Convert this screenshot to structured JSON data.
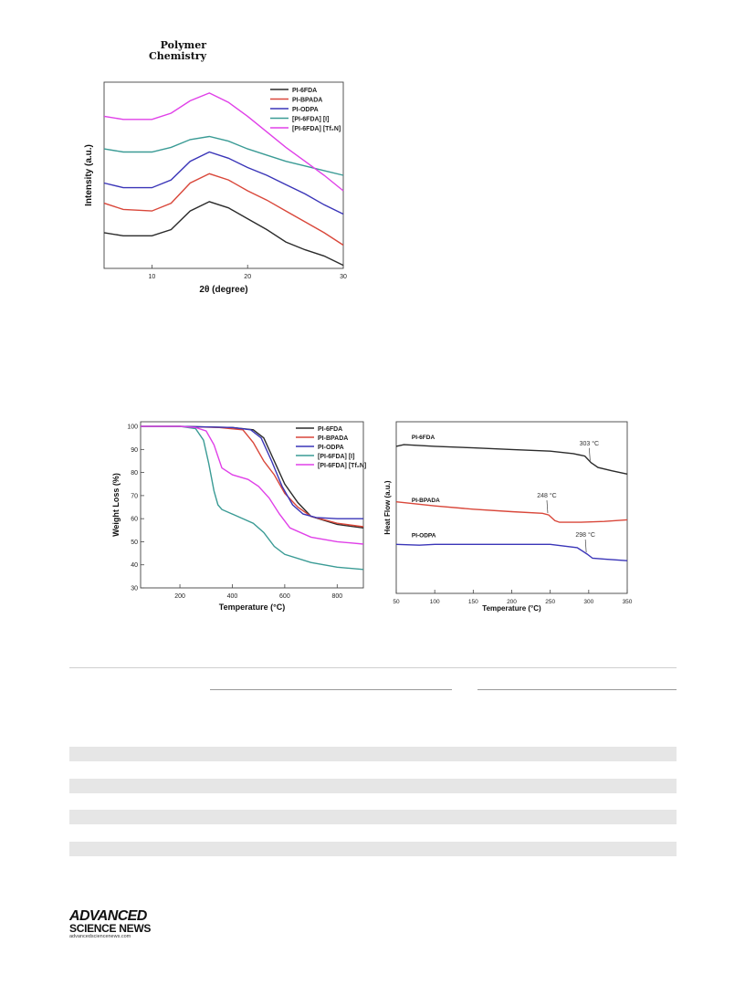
{
  "header": {
    "journal_line1": "Polymer",
    "journal_line2": "Chemistry"
  },
  "colors": {
    "PI-6FDA": "#2b2b2b",
    "PI-BPADA": "#d9473a",
    "PI-ODPA": "#3a35b8",
    "[PI-6FDA] [I]": "#3a9b95",
    "[PI-6FDA] [Tf2N]": "#e040e8"
  },
  "chart_data": [
    {
      "type": "line",
      "xlabel": "2θ (degree)",
      "ylabel": "Intensity (a.u.)",
      "xlim": [
        5,
        30
      ],
      "xticks": [
        10,
        20,
        30
      ],
      "yticks_shown": false,
      "legend_position": "top-right",
      "series": [
        {
          "name": "PI-6FDA",
          "display": "PI-6FDA",
          "x": [
            5,
            7,
            10,
            12,
            14,
            16,
            18,
            20,
            22,
            24,
            26,
            28,
            30
          ],
          "y": [
            1.8,
            1.6,
            1.6,
            2.0,
            3.2,
            3.8,
            3.4,
            2.7,
            2.0,
            1.2,
            0.7,
            0.3,
            -0.3
          ]
        },
        {
          "name": "PI-BPADA",
          "display": "PI-BPADA",
          "x": [
            5,
            7,
            10,
            12,
            14,
            16,
            18,
            20,
            22,
            24,
            26,
            28,
            30
          ],
          "y": [
            3.7,
            3.3,
            3.2,
            3.7,
            5.0,
            5.6,
            5.2,
            4.5,
            3.9,
            3.2,
            2.5,
            1.8,
            1.0
          ]
        },
        {
          "name": "PI-ODPA",
          "display": "PI-ODPA",
          "x": [
            5,
            7,
            10,
            12,
            14,
            16,
            18,
            20,
            22,
            24,
            26,
            28,
            30
          ],
          "y": [
            5.0,
            4.7,
            4.7,
            5.2,
            6.4,
            7.0,
            6.6,
            6.0,
            5.5,
            4.9,
            4.3,
            3.6,
            3.0
          ]
        },
        {
          "name": "[PI-6FDA] [I]",
          "display": "[PI-6FDA] [I]",
          "x": [
            5,
            7,
            10,
            12,
            14,
            16,
            18,
            20,
            22,
            24,
            26,
            28,
            30
          ],
          "y": [
            7.2,
            7.0,
            7.0,
            7.3,
            7.8,
            8.0,
            7.7,
            7.2,
            6.8,
            6.4,
            6.1,
            5.8,
            5.5
          ]
        },
        {
          "name": "[PI-6FDA] [Tf2N]",
          "display": "[PI-6FDA] [Tf₂N]",
          "x": [
            5,
            7,
            10,
            12,
            14,
            16,
            18,
            20,
            22,
            24,
            26,
            28,
            30
          ],
          "y": [
            9.3,
            9.1,
            9.1,
            9.5,
            10.3,
            10.8,
            10.2,
            9.3,
            8.3,
            7.3,
            6.4,
            5.5,
            4.5
          ]
        }
      ]
    },
    {
      "type": "line",
      "xlabel": "Temperature (°C)",
      "ylabel": "Weight Loss (%)",
      "xlim": [
        50,
        900
      ],
      "ylim": [
        30,
        102
      ],
      "xticks": [
        200,
        400,
        600,
        800
      ],
      "yticks": [
        30,
        40,
        50,
        60,
        70,
        80,
        90,
        100
      ],
      "legend_position": "top-right",
      "series": [
        {
          "name": "PI-6FDA",
          "display": "PI-6FDA",
          "x": [
            50,
            200,
            400,
            480,
            520,
            560,
            600,
            650,
            700,
            800,
            900
          ],
          "y": [
            100,
            100,
            99.5,
            98.5,
            95,
            85,
            75,
            67,
            61,
            57.5,
            56
          ]
        },
        {
          "name": "PI-BPADA",
          "display": "PI-BPADA",
          "x": [
            50,
            200,
            350,
            440,
            480,
            520,
            560,
            600,
            650,
            700,
            800,
            900
          ],
          "y": [
            100,
            100,
            99.5,
            98.5,
            93,
            85,
            79,
            71,
            65,
            61,
            58,
            56.5
          ]
        },
        {
          "name": "PI-ODPA",
          "display": "PI-ODPA",
          "x": [
            50,
            200,
            400,
            470,
            510,
            550,
            590,
            630,
            670,
            720,
            800,
            900
          ],
          "y": [
            100,
            100,
            99.5,
            98.5,
            95,
            85,
            74,
            66,
            62,
            60.5,
            60,
            60
          ]
        },
        {
          "name": "[PI-6FDA] [I]",
          "display": "[PI-6FDA] [I]",
          "x": [
            50,
            200,
            260,
            290,
            310,
            330,
            345,
            360,
            420,
            480,
            520,
            560,
            600,
            700,
            800,
            900
          ],
          "y": [
            100,
            100,
            99,
            94,
            84,
            72,
            66,
            64,
            61,
            58,
            54,
            48,
            44.5,
            41,
            39,
            38
          ]
        },
        {
          "name": "[PI-6FDA] [Tf2N]",
          "display": "[PI-6FDA] [Tf₂N]",
          "x": [
            50,
            200,
            260,
            300,
            330,
            360,
            400,
            460,
            500,
            540,
            580,
            620,
            700,
            800,
            900
          ],
          "y": [
            100,
            100,
            99.5,
            98,
            92,
            82,
            79,
            77,
            74,
            69,
            62,
            56,
            52,
            50,
            49
          ]
        }
      ]
    },
    {
      "type": "line",
      "xlabel": "Temperature (°C)",
      "ylabel": "Heat Flow (a.u.)",
      "xlim": [
        50,
        350
      ],
      "xticks": [
        50,
        100,
        150,
        200,
        250,
        300,
        350
      ],
      "yticks_shown": false,
      "legend_position": "none",
      "series": [
        {
          "name": "PI-6FDA",
          "label": "PI-6FDA",
          "tg": "303 °C",
          "tg_x": 303,
          "x": [
            50,
            60,
            100,
            150,
            200,
            250,
            280,
            295,
            303,
            312,
            330,
            350
          ],
          "y": [
            9.0,
            9.1,
            9.0,
            8.9,
            8.8,
            8.7,
            8.55,
            8.4,
            8.0,
            7.7,
            7.5,
            7.3
          ]
        },
        {
          "name": "PI-BPADA",
          "label": "PI-BPADA",
          "tg": "248 °C",
          "tg_x": 248,
          "x": [
            50,
            100,
            150,
            200,
            240,
            248,
            256,
            262,
            290,
            320,
            350
          ],
          "y": [
            5.6,
            5.35,
            5.15,
            5.0,
            4.9,
            4.8,
            4.45,
            4.35,
            4.35,
            4.4,
            4.5
          ]
        },
        {
          "name": "PI-ODPA",
          "label": "PI-ODPA",
          "tg": "298 °C",
          "tg_x": 298,
          "x": [
            50,
            80,
            100,
            150,
            200,
            250,
            285,
            298,
            305,
            320,
            350
          ],
          "y": [
            3.0,
            2.95,
            3.0,
            3.0,
            3.0,
            3.0,
            2.8,
            2.4,
            2.15,
            2.1,
            2.0
          ]
        }
      ]
    }
  ],
  "footer": {
    "logo_line1": "ADVANCED",
    "logo_line2": "SCIENCE NEWS",
    "logo_url": "advancedsciencenews.com"
  }
}
